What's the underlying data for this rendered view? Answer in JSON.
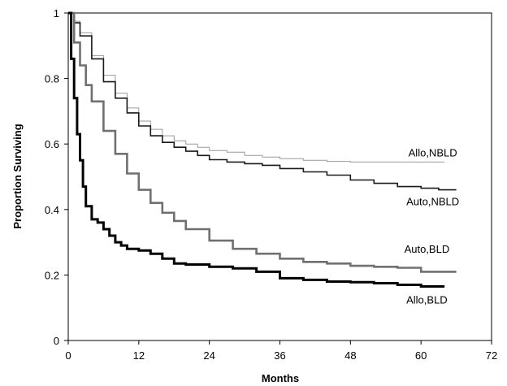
{
  "chart_data": {
    "type": "line",
    "step": true,
    "title": "",
    "xlabel": "Months",
    "ylabel": "Proportion Surviving",
    "xlim": [
      0,
      72
    ],
    "ylim": [
      0,
      1
    ],
    "x_ticks": [
      0,
      12,
      24,
      36,
      48,
      60,
      72
    ],
    "y_ticks": [
      0,
      0.2,
      0.4,
      0.6,
      0.8,
      1
    ],
    "x_tick_labels": [
      "0",
      "12",
      "24",
      "36",
      "48",
      "60",
      "72"
    ],
    "y_tick_labels": [
      "0",
      "0.2",
      "0.4",
      "0.6",
      "0.8",
      "1"
    ],
    "grid": false,
    "legend": "inline labels",
    "series": [
      {
        "name": "Allo,NBLD",
        "color": "#9a9a9a",
        "style": "thin",
        "x": [
          0,
          1,
          2,
          4,
          6,
          8,
          10,
          12,
          14,
          16,
          18,
          20,
          22,
          24,
          27,
          30,
          33,
          36,
          40,
          44,
          48,
          52,
          56,
          60,
          64
        ],
        "y": [
          1.0,
          0.975,
          0.94,
          0.87,
          0.81,
          0.755,
          0.71,
          0.67,
          0.645,
          0.625,
          0.61,
          0.6,
          0.59,
          0.58,
          0.575,
          0.565,
          0.56,
          0.555,
          0.55,
          0.547,
          0.545,
          0.545,
          0.545,
          0.545,
          0.545
        ]
      },
      {
        "name": "Auto,NBLD",
        "color": "#1a1a1a",
        "style": "medium",
        "x": [
          0,
          1,
          2,
          4,
          6,
          8,
          10,
          12,
          14,
          16,
          18,
          20,
          22,
          24,
          27,
          30,
          33,
          36,
          40,
          44,
          48,
          52,
          56,
          60,
          63,
          66
        ],
        "y": [
          1.0,
          0.97,
          0.93,
          0.86,
          0.79,
          0.74,
          0.695,
          0.655,
          0.625,
          0.605,
          0.59,
          0.578,
          0.565,
          0.552,
          0.545,
          0.54,
          0.535,
          0.525,
          0.515,
          0.505,
          0.49,
          0.48,
          0.47,
          0.465,
          0.46,
          0.46
        ]
      },
      {
        "name": "Auto,BLD",
        "color": "#707070",
        "style": "thick-gray",
        "x": [
          0,
          1,
          2,
          3,
          4,
          6,
          8,
          10,
          12,
          14,
          16,
          18,
          20,
          24,
          28,
          32,
          36,
          40,
          44,
          48,
          52,
          56,
          60,
          63,
          66
        ],
        "y": [
          1.0,
          0.91,
          0.84,
          0.78,
          0.73,
          0.64,
          0.57,
          0.51,
          0.46,
          0.42,
          0.39,
          0.365,
          0.34,
          0.305,
          0.28,
          0.265,
          0.25,
          0.24,
          0.235,
          0.228,
          0.225,
          0.222,
          0.21,
          0.21,
          0.21
        ]
      },
      {
        "name": "Allo,BLD",
        "color": "#000000",
        "style": "thick",
        "x": [
          0,
          0.5,
          1,
          1.5,
          2,
          2.5,
          3,
          4,
          5,
          6,
          7,
          8,
          9,
          10,
          12,
          14,
          16,
          18,
          20,
          24,
          28,
          32,
          36,
          40,
          44,
          48,
          52,
          56,
          60,
          64
        ],
        "y": [
          1.0,
          0.86,
          0.74,
          0.63,
          0.55,
          0.47,
          0.41,
          0.37,
          0.36,
          0.34,
          0.32,
          0.3,
          0.29,
          0.28,
          0.275,
          0.265,
          0.25,
          0.235,
          0.232,
          0.225,
          0.22,
          0.21,
          0.19,
          0.185,
          0.18,
          0.178,
          0.175,
          0.17,
          0.165,
          0.165
        ]
      }
    ],
    "annotations": [
      {
        "text": "Allo,NBLD",
        "x": 62,
        "y": 0.575
      },
      {
        "text": "Auto,NBLD",
        "x": 62,
        "y": 0.425
      },
      {
        "text": "Auto,BLD",
        "x": 61,
        "y": 0.28
      },
      {
        "text": "Allo,BLD",
        "x": 61,
        "y": 0.125
      }
    ]
  }
}
